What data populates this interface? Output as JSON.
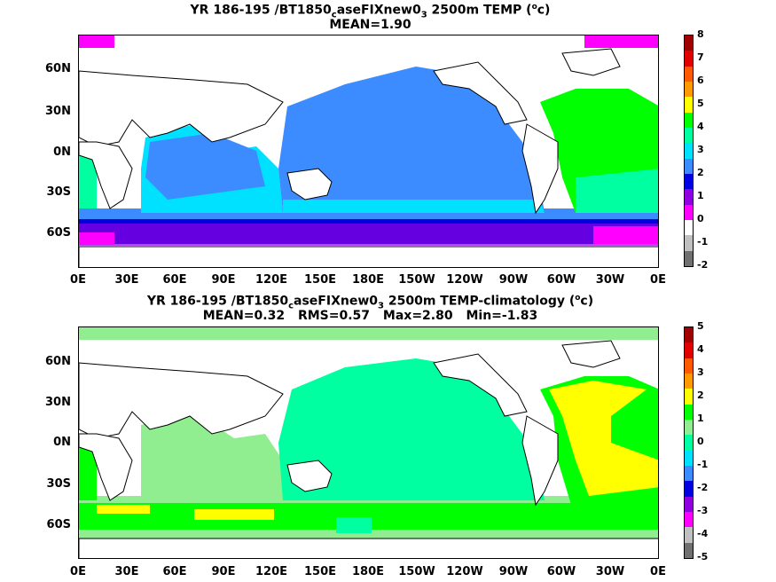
{
  "panel1": {
    "title": "YR 186-195 /BT1850",
    "title_sub": "c",
    "title_mid": "aseFIXnew0",
    "title_sub2": "3",
    "title_end": " 2500m TEMP (",
    "title_sup": "o",
    "title_unit": "c)",
    "stats": {
      "mean": "MEAN=1.90"
    },
    "colorbar_labels": [
      "8",
      "7",
      "6",
      "5",
      "4",
      "3",
      "2",
      "1",
      "0",
      "-1",
      "-2"
    ],
    "colorbar_colors": [
      "#a00000",
      "#e00000",
      "#ff5a00",
      "#ff9a00",
      "#ffff00",
      "#00ff00",
      "#00ffa0",
      "#00e0ff",
      "#3c8cff",
      "#0000e0",
      "#9000e0",
      "#ff00ff",
      "#ffffff",
      "#c0c0c0",
      "#707070"
    ]
  },
  "panel2": {
    "title": "YR 186-195 /BT1850",
    "title_sub": "c",
    "title_mid": "aseFIXnew0",
    "title_sub2": "3",
    "title_end": " 2500m TEMP-climatology (",
    "title_sup": "o",
    "title_unit": "c)",
    "stats": {
      "mean": "MEAN=0.32",
      "rms": "RMS=0.57",
      "max": "Max=2.80",
      "min": "Min=-1.83"
    },
    "colorbar_labels": [
      "5",
      "4",
      "3",
      "2",
      "1",
      "0",
      "-1",
      "-2",
      "-3",
      "-4",
      "-5"
    ],
    "colorbar_colors": [
      "#a00000",
      "#e00000",
      "#ff5a00",
      "#ff9a00",
      "#ffff00",
      "#00ff00",
      "#90ee90",
      "#00ffa0",
      "#00e0ff",
      "#3c8cff",
      "#0000e0",
      "#9000e0",
      "#ff00ff",
      "#c0c0c0",
      "#707070"
    ]
  },
  "axes": {
    "lat_labels": [
      "60N",
      "30N",
      "0N",
      "30S",
      "60S"
    ],
    "lon_labels": [
      "0E",
      "30E",
      "60E",
      "90E",
      "120E",
      "150E",
      "180E",
      "150W",
      "120W",
      "90W",
      "60W",
      "30W",
      "0E"
    ]
  },
  "colors": {
    "pacific_top": "#3c8cff",
    "indian_top": "#00e0ff",
    "atlantic_top": "#00ff00",
    "southern_deep": "#0000e0",
    "southern_purple": "#9000e0",
    "magenta": "#ff00ff",
    "anom_pacific": "#00ffa0",
    "anom_indian": "#90ee90",
    "anom_green": "#00ff00",
    "anom_yellow": "#ffff00"
  }
}
